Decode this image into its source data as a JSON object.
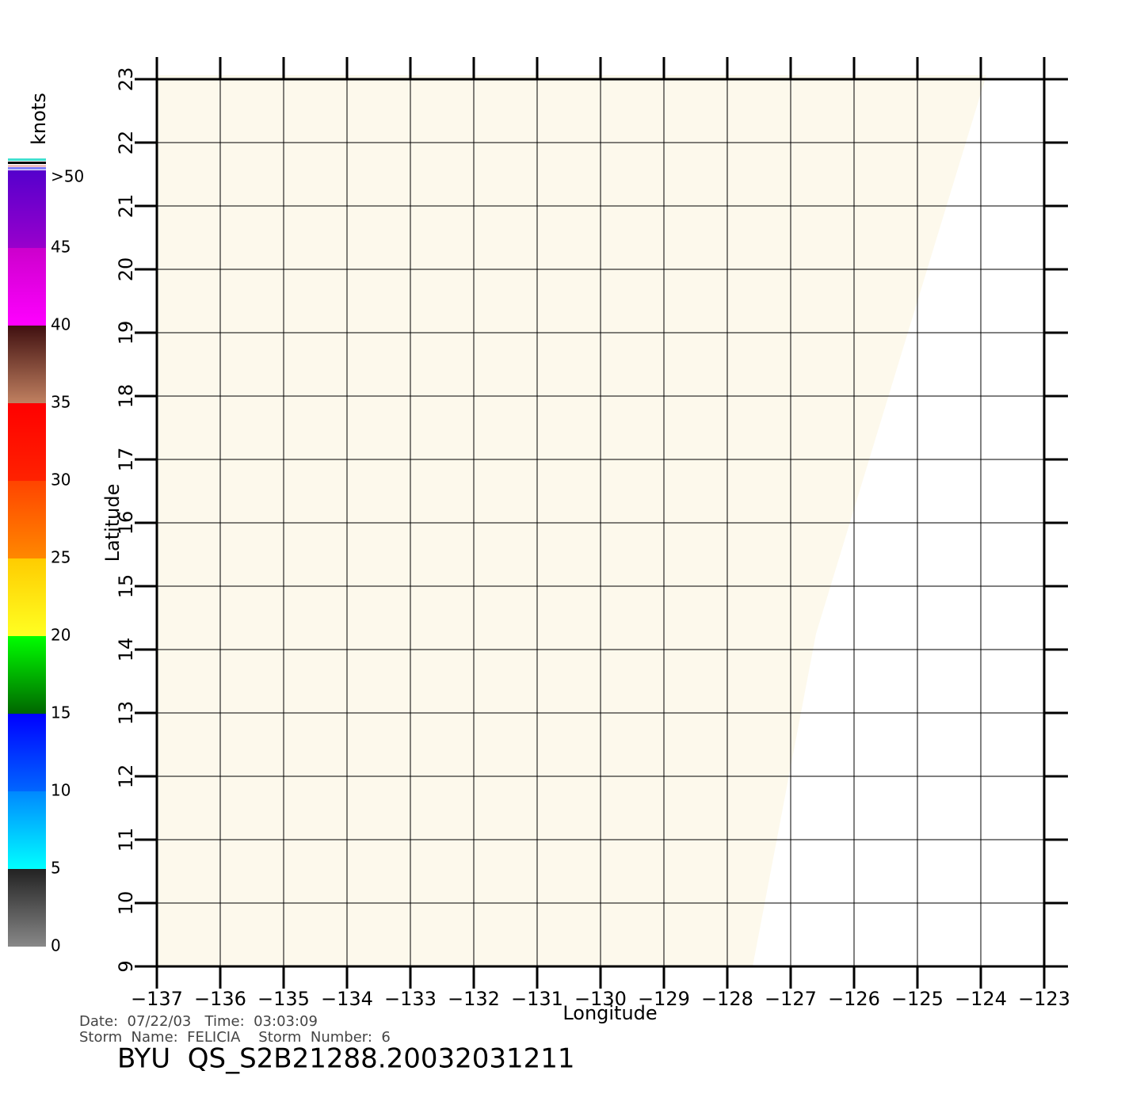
{
  "map": {
    "xlabel": "Longitude",
    "ylabel": "Latitude",
    "xlim": [
      -137,
      -123
    ],
    "ylim": [
      9,
      23
    ],
    "xticks": [
      {
        "value": -137,
        "label": "−137"
      },
      {
        "value": -136,
        "label": "−136"
      },
      {
        "value": -135,
        "label": "−135"
      },
      {
        "value": -134,
        "label": "−134"
      },
      {
        "value": -133,
        "label": "−133"
      },
      {
        "value": -132,
        "label": "−132"
      },
      {
        "value": -131,
        "label": "−131"
      },
      {
        "value": -130,
        "label": "−130"
      },
      {
        "value": -129,
        "label": "−129"
      },
      {
        "value": -128,
        "label": "−128"
      },
      {
        "value": -127,
        "label": "−127"
      },
      {
        "value": -126,
        "label": "−126"
      },
      {
        "value": -125,
        "label": "−125"
      },
      {
        "value": -124,
        "label": "−124"
      },
      {
        "value": -123,
        "label": "−123"
      }
    ],
    "yticks": [
      9,
      10,
      11,
      12,
      13,
      14,
      15,
      16,
      17,
      18,
      19,
      20,
      21,
      22,
      23
    ],
    "grid": true,
    "colorbar": {
      "title": "knots",
      "lim": [
        0,
        50
      ],
      "ticks": [
        0,
        5,
        10,
        15,
        20,
        25,
        30,
        35,
        40,
        45,
        {
          "value": 50,
          "label": ">50"
        }
      ],
      "bands": [
        {
          "from": 0,
          "to": 5,
          "colors": [
            "#888888",
            "#222222"
          ]
        },
        {
          "from": 5,
          "to": 10,
          "colors": [
            "#00ffff",
            "#0088ff"
          ]
        },
        {
          "from": 10,
          "to": 15,
          "colors": [
            "#0066ff",
            "#0000ff"
          ]
        },
        {
          "from": 15,
          "to": 20,
          "colors": [
            "#006600",
            "#00ff00"
          ]
        },
        {
          "from": 20,
          "to": 25,
          "colors": [
            "#ffff22",
            "#ffcc00"
          ]
        },
        {
          "from": 25,
          "to": 30,
          "colors": [
            "#ff8800",
            "#ff4400"
          ]
        },
        {
          "from": 30,
          "to": 35,
          "colors": [
            "#ff2200",
            "#ff0000"
          ]
        },
        {
          "from": 35,
          "to": 40,
          "colors": [
            "#c08060",
            "#401010"
          ]
        },
        {
          "from": 40,
          "to": 45,
          "colors": [
            "#ff00ff",
            "#cc00cc"
          ]
        },
        {
          "from": 45,
          "to": 50,
          "colors": [
            "#9900cc",
            "#5500cc"
          ]
        }
      ]
    }
  },
  "footer": {
    "date_line": "Date:  07/22/03   Time:  03:03:09",
    "storm_line": "Storm  Name:  FELICIA    Storm  Number:  6",
    "file_id": "BYU  QS_S2B21288.20032031211"
  }
}
